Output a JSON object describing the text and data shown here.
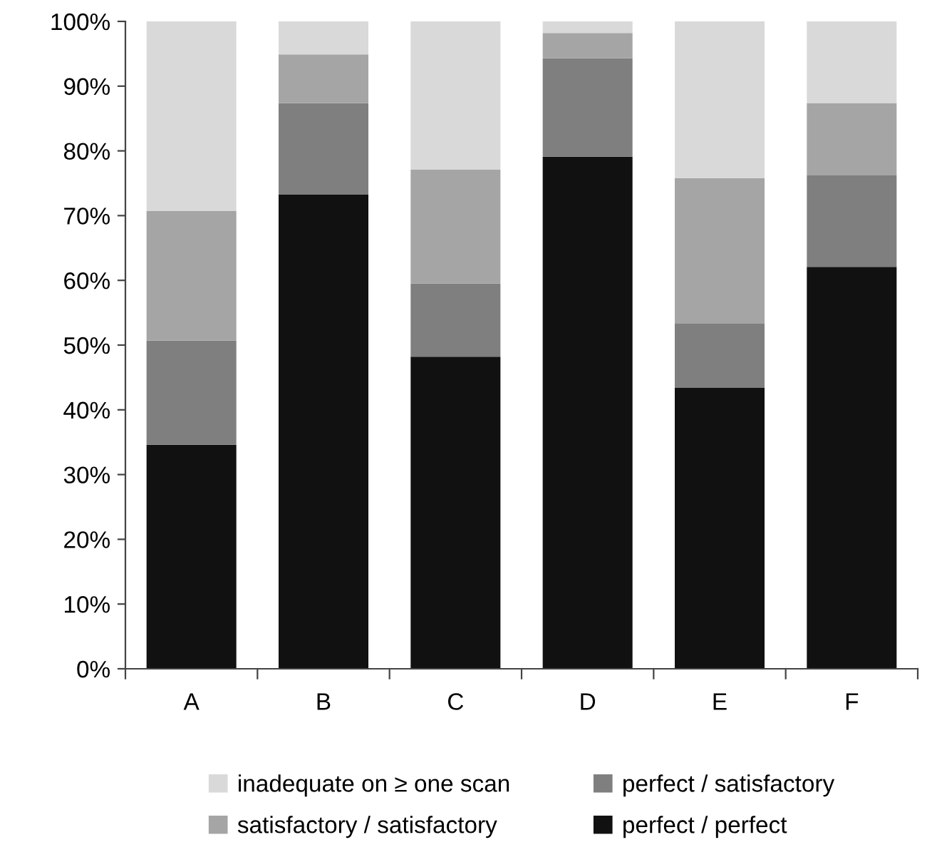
{
  "chart_data": {
    "type": "bar",
    "stacked": true,
    "categories": [
      "A",
      "B",
      "C",
      "D",
      "E",
      "F"
    ],
    "series": [
      {
        "name": "perfect / perfect",
        "color": "#111111",
        "values": [
          34.6,
          73.3,
          48.2,
          79.1,
          43.4,
          62.1
        ]
      },
      {
        "name": "perfect / satisfactory",
        "color": "#7f7f7f",
        "values": [
          16.1,
          14.1,
          11.3,
          15.2,
          9.9,
          14.1
        ]
      },
      {
        "name": "satisfactory / satisfactory",
        "color": "#a5a5a5",
        "values": [
          20.0,
          7.5,
          17.6,
          3.9,
          22.5,
          11.2
        ]
      },
      {
        "name": "inadequate on ≥ one scan",
        "color": "#d9d9d9",
        "values": [
          29.3,
          5.1,
          22.9,
          1.8,
          24.2,
          12.6
        ]
      }
    ],
    "ylim": [
      0,
      100
    ],
    "yticks": [
      {
        "value": 0,
        "label": "0%"
      },
      {
        "value": 10,
        "label": "10%"
      },
      {
        "value": 20,
        "label": "20%"
      },
      {
        "value": 30,
        "label": "30%"
      },
      {
        "value": 40,
        "label": "40%"
      },
      {
        "value": 50,
        "label": "50%"
      },
      {
        "value": 60,
        "label": "60%"
      },
      {
        "value": 70,
        "label": "70%"
      },
      {
        "value": 80,
        "label": "80%"
      },
      {
        "value": 90,
        "label": "90%"
      },
      {
        "value": 100,
        "label": "100%"
      }
    ],
    "grid": false,
    "legend": "bottom"
  }
}
